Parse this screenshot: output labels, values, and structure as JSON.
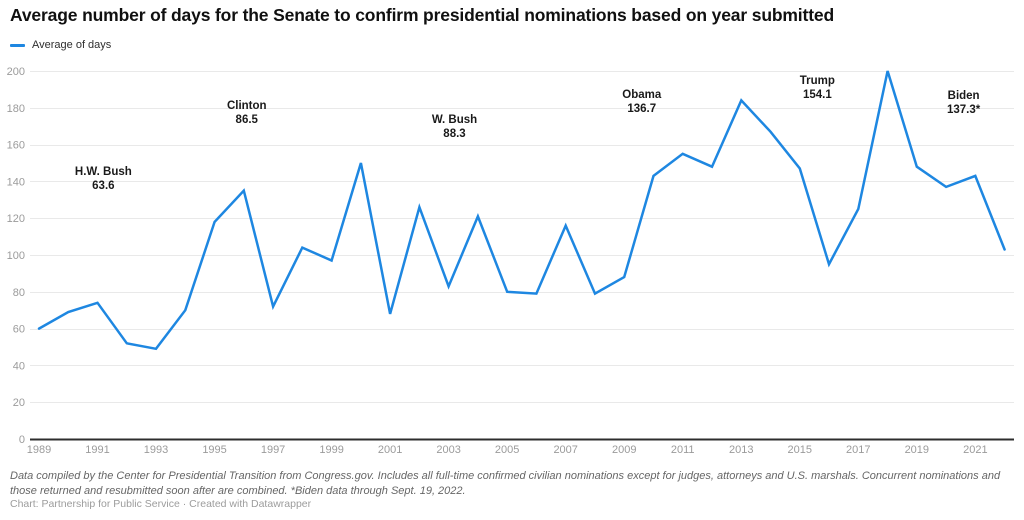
{
  "header": {
    "title": "Average number of days for the Senate to confirm presidential nominations based on year submitted"
  },
  "legend": {
    "label": "Average of days"
  },
  "chart_data": {
    "type": "line",
    "title": "Average number of days for the Senate to confirm presidential nominations based on year submitted",
    "x": [
      1989,
      1990,
      1991,
      1992,
      1993,
      1994,
      1995,
      1996,
      1997,
      1998,
      1999,
      2000,
      2001,
      2002,
      2003,
      2004,
      2005,
      2006,
      2007,
      2008,
      2009,
      2010,
      2011,
      2012,
      2013,
      2014,
      2015,
      2016,
      2017,
      2018,
      2019,
      2020,
      2021,
      2022
    ],
    "series": [
      {
        "name": "Average of days",
        "values": [
          60,
          69,
          74,
          52,
          49,
          70,
          118,
          135,
          72,
          104,
          97,
          150,
          68,
          126,
          83,
          121,
          80,
          79,
          116,
          79,
          88,
          143,
          155,
          148,
          184,
          167,
          147,
          95,
          125,
          200,
          148,
          137,
          143,
          103
        ]
      }
    ],
    "xlabel": "",
    "ylabel": "",
    "ylim": [
      0,
      200
    ],
    "xlim": [
      1989,
      2022
    ],
    "yticks": [
      0,
      20,
      40,
      60,
      80,
      100,
      120,
      140,
      160,
      180,
      200
    ],
    "xticks": [
      1989,
      1991,
      1993,
      1995,
      1997,
      1999,
      2001,
      2003,
      2005,
      2007,
      2009,
      2011,
      2013,
      2015,
      2017,
      2019,
      2021
    ],
    "grid": "horizontal",
    "legend_position": "top-left",
    "line_color": "#1e87e1",
    "grid_color": "#e9e9e9",
    "baseline_color": "#2d2d2d",
    "tick_label_color": "#9b9b9b",
    "annotations": [
      {
        "name": "H.W. Bush",
        "value": "63.6",
        "anchor_year": 1991.2,
        "anchor_value": 149
      },
      {
        "name": "Clinton",
        "value": "86.5",
        "anchor_year": 1996.1,
        "anchor_value": 185
      },
      {
        "name": "W. Bush",
        "value": "88.3",
        "anchor_year": 2003.2,
        "anchor_value": 177
      },
      {
        "name": "Obama",
        "value": "136.7",
        "anchor_year": 2009.6,
        "anchor_value": 191
      },
      {
        "name": "Trump",
        "value": "154.1",
        "anchor_year": 2015.6,
        "anchor_value": 198.5
      },
      {
        "name": "Biden",
        "value": "137.3*",
        "anchor_year": 2020.6,
        "anchor_value": 190
      }
    ]
  },
  "footer": {
    "notes": "Data compiled by the Center for Presidential Transition from Congress.gov. Includes all full-time confirmed civilian nominations except for judges, attorneys and U.S. marshals. Concurrent nominations and those returned and resubmitted soon after are combined. *Biden data through Sept. 19, 2022.",
    "byline": "Chart: Partnership for Public Service · Created with Datawrapper"
  }
}
